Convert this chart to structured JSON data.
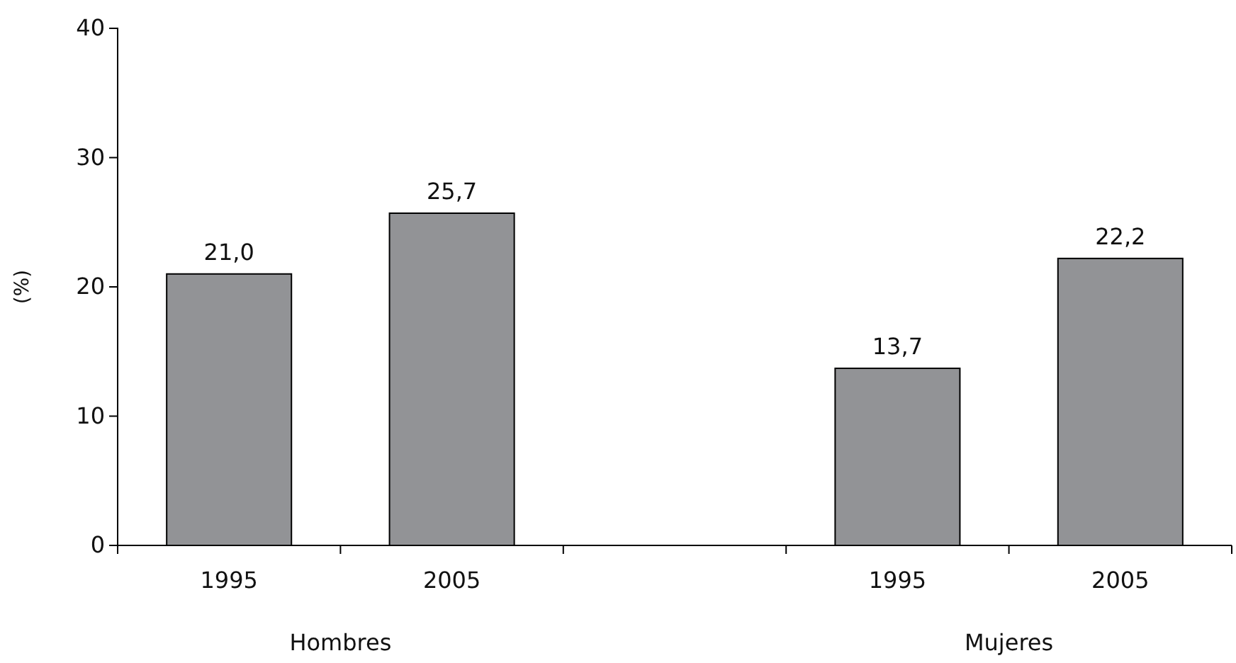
{
  "chart_data": {
    "type": "bar",
    "ylabel": "(%)",
    "categories": [
      "1995",
      "2005",
      null,
      "1995",
      "2005"
    ],
    "values": [
      21.0,
      25.7,
      null,
      13.7,
      22.2
    ],
    "value_labels": [
      "21,0",
      "25,7",
      null,
      "13,7",
      "22,2"
    ],
    "color": "#929396",
    "ylim": [
      0,
      40
    ],
    "yticks": [
      0,
      10,
      20,
      30,
      40
    ],
    "grid": false,
    "annotations": [
      "Hombres",
      "Mujeres"
    ]
  }
}
